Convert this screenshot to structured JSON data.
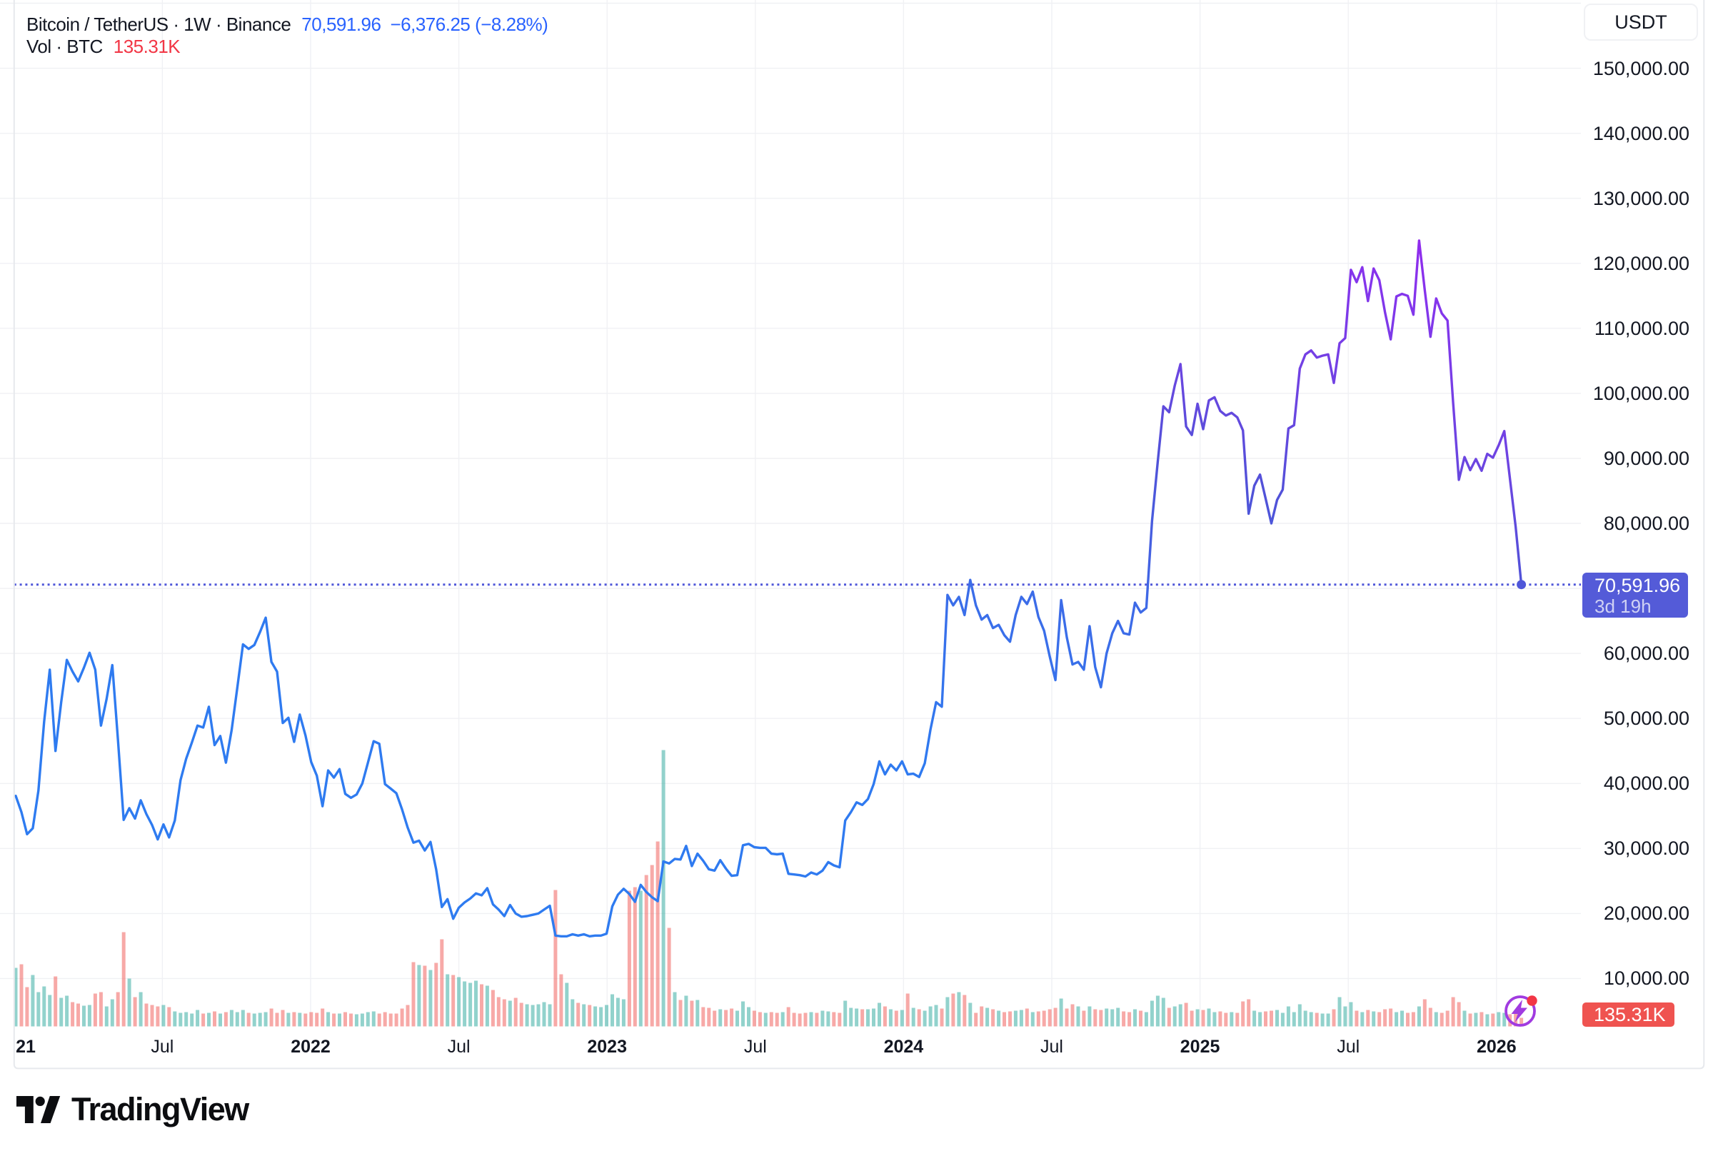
{
  "header": {
    "symbol_title": "Bitcoin / TetherUS · 1W · Binance",
    "last_price": "70,591.96",
    "change": "−6,376.25 (−8.28%)",
    "volume_row_label": "Vol · BTC",
    "volume_value": "135.31K"
  },
  "price_scale": {
    "currency_button": "USDT",
    "tick_labels": [
      "150,000.00",
      "140,000.00",
      "130,000.00",
      "120,000.00",
      "110,000.00",
      "100,000.00",
      "90,000.00",
      "80,000.00",
      "60,000.00",
      "50,000.00",
      "40,000.00",
      "30,000.00",
      "20,000.00",
      "10,000.00"
    ],
    "tick_values": [
      150000,
      140000,
      130000,
      120000,
      110000,
      100000,
      90000,
      80000,
      60000,
      50000,
      40000,
      30000,
      20000,
      10000
    ],
    "last_price_label": {
      "value": "70,591.96",
      "countdown": "3d 19h"
    },
    "volume_label": "135.31K"
  },
  "time_scale": {
    "ticks": [
      {
        "label": "21",
        "bold": true
      },
      {
        "label": "Jul",
        "bold": false
      },
      {
        "label": "2022",
        "bold": true
      },
      {
        "label": "Jul",
        "bold": false
      },
      {
        "label": "2023",
        "bold": true
      },
      {
        "label": "Jul",
        "bold": false
      },
      {
        "label": "2024",
        "bold": true
      },
      {
        "label": "Jul",
        "bold": false
      },
      {
        "label": "2025",
        "bold": true
      },
      {
        "label": "Jul",
        "bold": false
      },
      {
        "label": "2026",
        "bold": true
      }
    ]
  },
  "footer": {
    "brand": "TradingView"
  },
  "colors": {
    "title_text": "#131722",
    "legend_value_blue": "#2962FF",
    "legend_volume_red": "#F23645",
    "grid": "#f0f1f4",
    "frame_border": "#e7e9ed",
    "axis_text": "#131722",
    "line_gradient_stops": [
      {
        "offset": 0.0,
        "color": "#2E7CF1"
      },
      {
        "offset": 0.3,
        "color": "#2F7AF0"
      },
      {
        "offset": 0.42,
        "color": "#3E6AE7"
      },
      {
        "offset": 0.5,
        "color": "#5052D8"
      },
      {
        "offset": 0.55,
        "color": "#6A46E0"
      },
      {
        "offset": 0.63,
        "color": "#8435EC"
      },
      {
        "offset": 0.69,
        "color": "#9C23EE"
      },
      {
        "offset": 1.0,
        "color": "#A817F0"
      }
    ],
    "price_line_dot": "#4F57D9",
    "price_badge_bg": "#545BD8",
    "volume_badge_bg": "#EF5350",
    "volume_up": "rgba(38,166,154,0.5)",
    "volume_down": "rgba(239,83,80,0.5)",
    "flash_icon": "#A13BE0",
    "flash_icon_dot": "#F23645",
    "logo_color": "#0c0d10"
  },
  "chart_data": {
    "type": "line",
    "title": "Bitcoin / TetherUS weekly close, Binance (BTC/USDT)",
    "x_unit": "week (first point = week of 2021-01-04, one point per week)",
    "y_unit": "USDT (thousands)",
    "ylim_shown": [
      3000,
      161000
    ],
    "xlabel_ticks": [
      "21",
      "Jul",
      "2022",
      "Jul",
      "2023",
      "Jul",
      "2024",
      "Jul",
      "2025",
      "Jul",
      "2026"
    ],
    "legend_position": "top-left",
    "grid": true,
    "last_point_marker": true,
    "last_price": 70591.96,
    "weekly_close_k": [
      38.1,
      35.6,
      32.2,
      33.1,
      38.9,
      49.5,
      57.5,
      45.0,
      52.5,
      59.0,
      57.2,
      55.7,
      57.8,
      60.1,
      57.5,
      48.9,
      53.0,
      58.2,
      46.7,
      34.4,
      36.2,
      34.6,
      37.4,
      35.3,
      33.6,
      31.4,
      33.7,
      31.7,
      34.3,
      40.5,
      43.8,
      46.3,
      48.9,
      48.6,
      51.8,
      45.9,
      47.3,
      43.2,
      48.2,
      54.7,
      61.4,
      60.7,
      61.3,
      63.3,
      65.5,
      58.7,
      57.2,
      49.3,
      50.1,
      46.4,
      50.6,
      47.4,
      43.3,
      41.2,
      36.5,
      42.0,
      40.9,
      42.2,
      38.4,
      37.8,
      38.3,
      40.0,
      43.2,
      46.5,
      46.1,
      39.9,
      39.2,
      38.5,
      36.0,
      33.2,
      30.9,
      31.2,
      29.7,
      31.0,
      26.8,
      21.0,
      22.2,
      19.2,
      20.9,
      21.7,
      22.3,
      23.1,
      22.8,
      23.9,
      21.4,
      20.6,
      19.6,
      21.3,
      20.0,
      19.5,
      19.6,
      19.8,
      20.0,
      20.6,
      21.2,
      16.6,
      16.5,
      16.5,
      16.8,
      16.6,
      16.8,
      16.5,
      16.6,
      16.6,
      16.9,
      21.1,
      22.9,
      23.8,
      23.0,
      21.8,
      24.4,
      23.3,
      22.5,
      21.9,
      28.0,
      27.7,
      28.4,
      28.3,
      30.4,
      27.3,
      29.2,
      28.1,
      26.8,
      26.6,
      28.2,
      26.9,
      25.8,
      25.9,
      30.5,
      30.7,
      30.2,
      30.1,
      30.1,
      29.2,
      29.1,
      29.2,
      26.1,
      26.0,
      25.9,
      25.7,
      26.3,
      26.0,
      26.6,
      27.9,
      27.4,
      27.1,
      34.3,
      35.6,
      37.1,
      36.7,
      37.6,
      39.9,
      43.4,
      41.4,
      42.9,
      42.0,
      43.4,
      41.4,
      41.5,
      41.0,
      43.1,
      48.3,
      52.5,
      51.8,
      69.0,
      67.4,
      68.7,
      65.9,
      71.3,
      67.4,
      65.2,
      65.9,
      63.9,
      64.4,
      62.8,
      61.8,
      65.9,
      68.7,
      67.6,
      69.5,
      65.6,
      63.5,
      59.5,
      55.9,
      68.2,
      62.5,
      58.3,
      58.7,
      57.5,
      64.2,
      57.9,
      54.8,
      60.0,
      63.1,
      65.0,
      63.1,
      62.9,
      67.8,
      66.3,
      67.0,
      80.4,
      89.5,
      98.0,
      97.1,
      101.2,
      104.5,
      94.9,
      93.6,
      98.4,
      94.5,
      98.9,
      99.4,
      97.3,
      96.6,
      97.0,
      96.3,
      94.3,
      81.5,
      85.8,
      87.5,
      83.8,
      80.0,
      83.6,
      85.2,
      94.6,
      95.1,
      103.8,
      106.0,
      106.6,
      105.5,
      105.8,
      106.0,
      101.6,
      107.7,
      108.5,
      119.0,
      117.1,
      119.4,
      114.2,
      119.2,
      117.4,
      112.5,
      108.3,
      114.9,
      115.3,
      115.0,
      112.1,
      123.5,
      115.9,
      108.7,
      114.6,
      112.3,
      111.2,
      98.5,
      86.7,
      90.2,
      88.2,
      89.9,
      88.1,
      90.7,
      90.1,
      92.0,
      94.2,
      86.8,
      79.5,
      70.592
    ],
    "volume_bar_heights_rel": [
      82,
      87,
      55,
      72,
      48,
      56,
      44,
      70,
      40,
      43,
      34,
      32,
      29,
      30,
      46,
      48,
      28,
      38,
      48,
      132,
      67,
      41,
      48,
      32,
      30,
      28,
      30,
      27,
      21,
      19,
      20,
      18,
      23,
      18,
      19,
      21,
      18,
      20,
      23,
      20,
      23,
      19,
      18,
      19,
      20,
      25,
      19,
      23,
      19,
      20,
      19,
      18,
      20,
      19,
      25,
      20,
      18,
      18,
      20,
      18,
      17,
      18,
      20,
      21,
      18,
      20,
      18,
      18,
      25,
      30,
      90,
      86,
      85,
      79,
      89,
      122,
      73,
      72,
      69,
      63,
      61,
      64,
      59,
      57,
      51,
      41,
      38,
      36,
      40,
      33,
      31,
      30,
      31,
      34,
      31,
      191,
      73,
      61,
      38,
      33,
      31,
      30,
      28,
      27,
      30,
      45,
      40,
      38,
      190,
      195,
      190,
      212,
      226,
      259,
      387,
      138,
      48,
      37,
      43,
      36,
      37,
      27,
      26,
      22,
      24,
      23,
      25,
      22,
      35,
      27,
      22,
      20,
      19,
      20,
      19,
      20,
      27,
      19,
      18,
      19,
      20,
      19,
      22,
      21,
      20,
      19,
      36,
      26,
      25,
      24,
      24,
      25,
      33,
      28,
      24,
      22,
      23,
      46,
      26,
      24,
      22,
      28,
      30,
      25,
      41,
      46,
      48,
      44,
      33,
      19,
      28,
      26,
      24,
      22,
      20,
      21,
      22,
      23,
      25,
      20,
      21,
      22,
      24,
      26,
      39,
      25,
      31,
      28,
      22,
      28,
      24,
      23,
      25,
      24,
      26,
      21,
      20,
      24,
      22,
      20,
      36,
      43,
      40,
      26,
      28,
      31,
      33,
      22,
      24,
      23,
      25,
      20,
      21,
      19,
      20,
      19,
      35,
      38,
      22,
      20,
      21,
      22,
      23,
      19,
      28,
      20,
      31,
      22,
      20,
      19,
      18,
      18,
      24,
      41,
      28,
      34,
      22,
      20,
      23,
      21,
      20,
      24,
      25,
      20,
      22,
      19,
      20,
      28,
      38,
      26,
      20,
      19,
      22,
      41,
      34,
      22,
      18,
      19,
      20,
      17,
      18,
      20,
      19,
      17,
      18,
      12
    ],
    "volume_colors_note": "bar is teal when close >= previous close, light red otherwise"
  }
}
